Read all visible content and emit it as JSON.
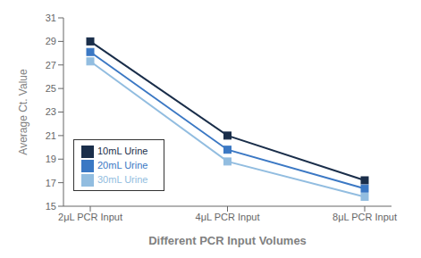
{
  "chart_data": {
    "type": "line",
    "categories": [
      "2μL PCR Input",
      "4μL PCR Input",
      "8μL PCR Input"
    ],
    "series": [
      {
        "name": "10mL Urine",
        "color": "#1a2e4a",
        "values": [
          29.0,
          21.0,
          17.2
        ],
        "marker": "square"
      },
      {
        "name": "20mL Urine",
        "color": "#3b78c4",
        "values": [
          28.1,
          19.8,
          16.5
        ],
        "marker": "square"
      },
      {
        "name": "30mL Urine",
        "color": "#92bde0",
        "values": [
          27.3,
          18.8,
          15.8
        ],
        "marker": "square"
      }
    ],
    "xlabel": "Different PCR Input Volumes",
    "ylabel": "Average Ct. Value",
    "ylim": [
      15,
      31
    ],
    "yticks": [
      15,
      17,
      19,
      21,
      23,
      25,
      27,
      29,
      31
    ],
    "grid": false,
    "legend": "lower left"
  }
}
